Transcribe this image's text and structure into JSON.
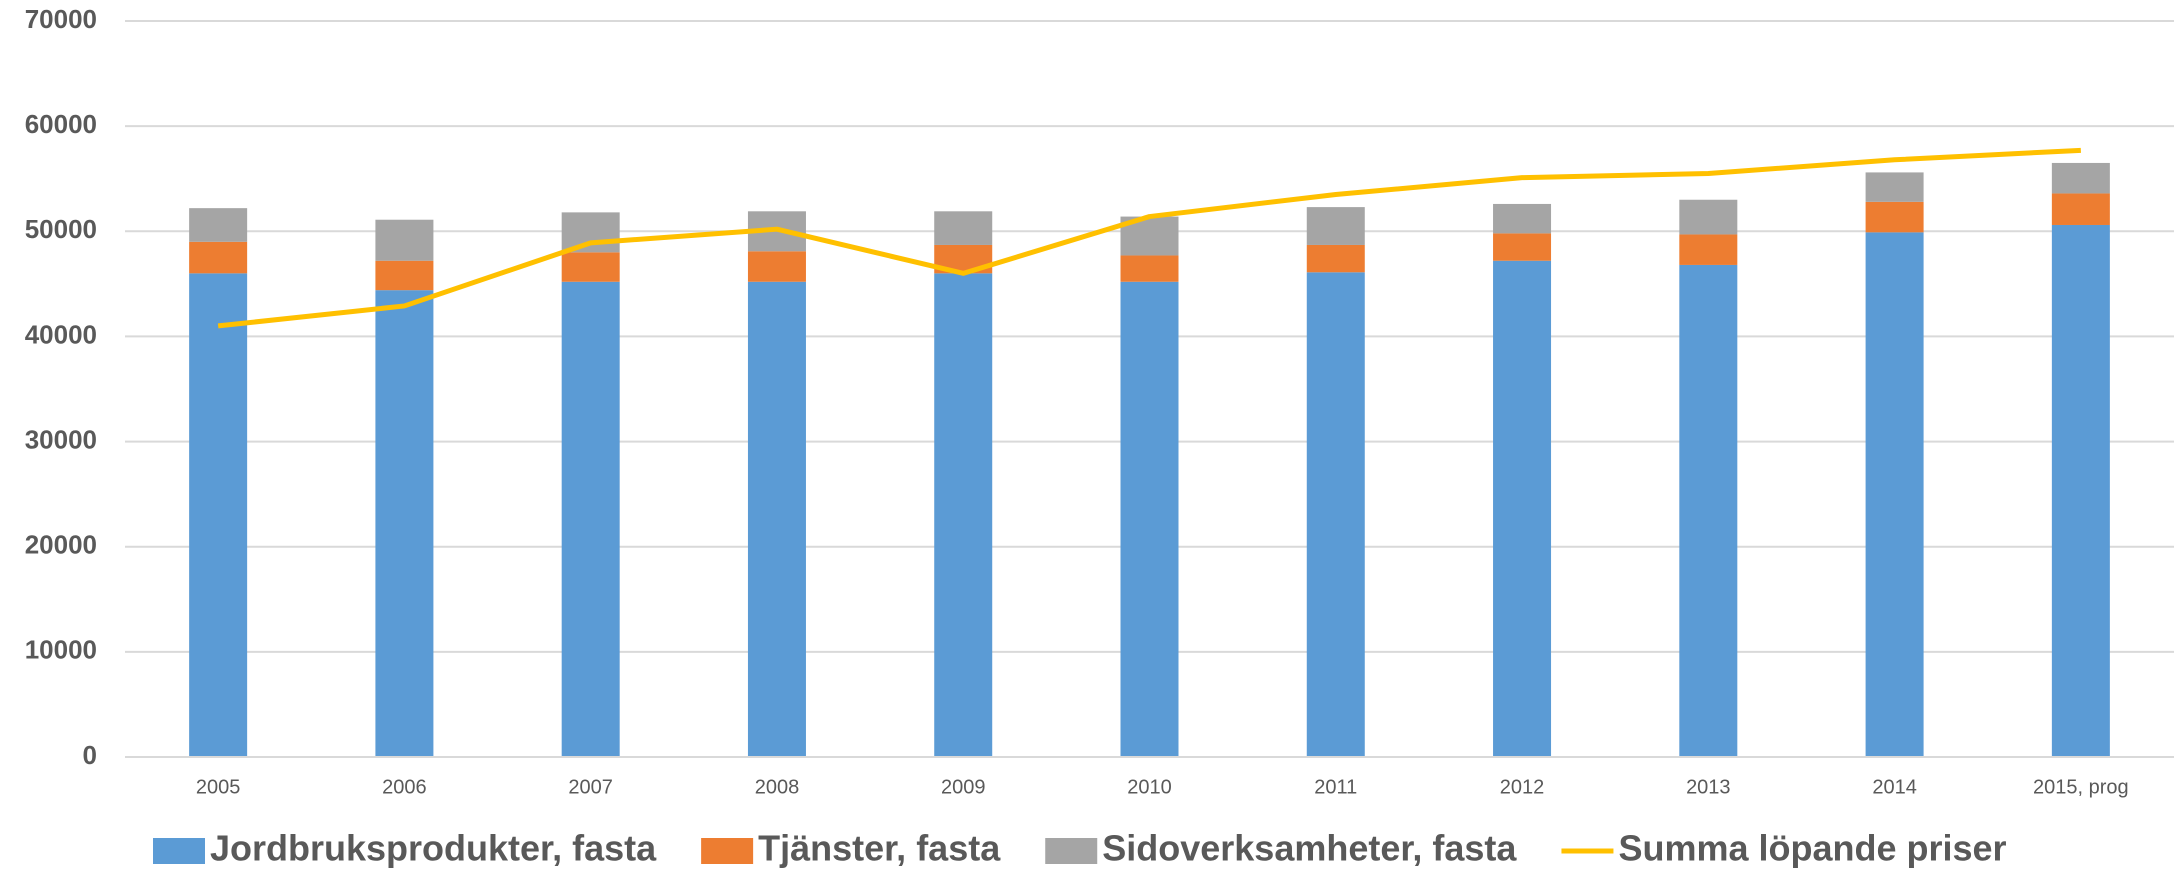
{
  "chart_data": {
    "type": "bar",
    "categories": [
      "2005",
      "2006",
      "2007",
      "2008",
      "2009",
      "2010",
      "2011",
      "2012",
      "2013",
      "2014",
      "2015, prog"
    ],
    "series": [
      {
        "name": "Jordbruksprodukter, fasta",
        "color": "#5b9bd5",
        "type": "bar",
        "values": [
          46000,
          44400,
          45200,
          45200,
          46000,
          45200,
          46100,
          47200,
          46800,
          49900,
          50600
        ]
      },
      {
        "name": "Tjänster, fasta",
        "color": "#ed7d31",
        "type": "bar",
        "values": [
          3000,
          2800,
          2800,
          2900,
          2700,
          2500,
          2600,
          2600,
          2900,
          2900,
          3000
        ]
      },
      {
        "name": "Sidoverksamheter, fasta",
        "color": "#a5a5a5",
        "type": "bar",
        "values": [
          3200,
          3900,
          3800,
          3800,
          3200,
          3700,
          3600,
          2800,
          3300,
          2800,
          2900
        ]
      },
      {
        "name": "Summa löpande priser",
        "color": "#ffc000",
        "type": "line",
        "values": [
          41000,
          42900,
          48900,
          50200,
          46000,
          51400,
          53500,
          55100,
          55500,
          56800,
          57700
        ]
      }
    ],
    "stacked": true,
    "ylim": [
      0,
      70000
    ],
    "yticks": [
      0,
      10000,
      20000,
      30000,
      40000,
      50000,
      60000,
      70000
    ],
    "grid": true,
    "legend": "bottom"
  }
}
